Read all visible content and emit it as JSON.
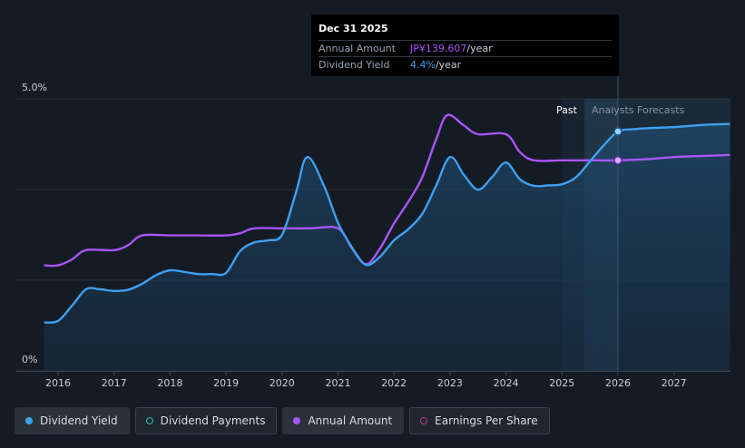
{
  "tooltip": {
    "date": "Dec 31 2025",
    "rows": [
      {
        "label": "Annual Amount",
        "value": "JP¥139.607",
        "unit": "/year"
      },
      {
        "label": "Dividend Yield",
        "value": "4.4%",
        "unit": "/year"
      }
    ]
  },
  "legend": [
    {
      "label": "Dividend Yield",
      "color": "#3ea0f0",
      "style": "filled"
    },
    {
      "label": "Dividend Payments",
      "color": "#2ec4b6",
      "style": "outline"
    },
    {
      "label": "Annual Amount",
      "color": "#a855f7",
      "style": "filled"
    },
    {
      "label": "Earnings Per Share",
      "color": "#c0357a",
      "style": "outline"
    }
  ],
  "chart_data": {
    "type": "line",
    "y_ticks": [
      "5.0%",
      "0%"
    ],
    "ylim": [
      0,
      5.0
    ],
    "xlim": [
      2015.7,
      2028.0
    ],
    "x_tick_labels": [
      "2016",
      "2017",
      "2018",
      "2019",
      "2020",
      "2021",
      "2022",
      "2023",
      "2024",
      "2025",
      "2026",
      "2027"
    ],
    "region_labels": {
      "past": "Past",
      "forecast": "Analysts Forecasts"
    },
    "forecast_start": 2025.4,
    "highlight_x": 2026.0,
    "series": [
      {
        "name": "Dividend Yield",
        "unit": "%",
        "color": "#3ea0f0",
        "points": [
          [
            2015.75,
            0.89
          ],
          [
            2016.0,
            0.92
          ],
          [
            2016.25,
            1.2
          ],
          [
            2016.5,
            1.5
          ],
          [
            2016.75,
            1.5
          ],
          [
            2017.0,
            1.47
          ],
          [
            2017.25,
            1.49
          ],
          [
            2017.5,
            1.6
          ],
          [
            2017.75,
            1.76
          ],
          [
            2018.0,
            1.85
          ],
          [
            2018.25,
            1.82
          ],
          [
            2018.5,
            1.78
          ],
          [
            2018.75,
            1.78
          ],
          [
            2019.0,
            1.8
          ],
          [
            2019.25,
            2.2
          ],
          [
            2019.5,
            2.36
          ],
          [
            2019.75,
            2.4
          ],
          [
            2020.0,
            2.5
          ],
          [
            2020.25,
            3.28
          ],
          [
            2020.45,
            3.93
          ],
          [
            2020.75,
            3.4
          ],
          [
            2021.0,
            2.72
          ],
          [
            2021.25,
            2.27
          ],
          [
            2021.5,
            1.95
          ],
          [
            2021.75,
            2.1
          ],
          [
            2022.0,
            2.4
          ],
          [
            2022.25,
            2.6
          ],
          [
            2022.5,
            2.88
          ],
          [
            2022.75,
            3.4
          ],
          [
            2023.0,
            3.93
          ],
          [
            2023.25,
            3.6
          ],
          [
            2023.5,
            3.33
          ],
          [
            2023.75,
            3.56
          ],
          [
            2024.0,
            3.83
          ],
          [
            2024.25,
            3.52
          ],
          [
            2024.5,
            3.4
          ],
          [
            2024.75,
            3.41
          ],
          [
            2025.0,
            3.43
          ],
          [
            2025.25,
            3.56
          ],
          [
            2025.5,
            3.85
          ],
          [
            2025.75,
            4.15
          ],
          [
            2026.0,
            4.4
          ],
          [
            2026.25,
            4.44
          ],
          [
            2026.5,
            4.46
          ],
          [
            2027.0,
            4.48
          ],
          [
            2027.5,
            4.52
          ],
          [
            2028.0,
            4.54
          ]
        ]
      },
      {
        "name": "Annual Amount",
        "color": "#a855f7",
        "points": [
          [
            2015.75,
            1.94
          ],
          [
            2016.0,
            1.94
          ],
          [
            2016.25,
            2.05
          ],
          [
            2016.5,
            2.22
          ],
          [
            2017.0,
            2.22
          ],
          [
            2017.25,
            2.31
          ],
          [
            2017.5,
            2.49
          ],
          [
            2018.0,
            2.49
          ],
          [
            2018.5,
            2.49
          ],
          [
            2019.0,
            2.49
          ],
          [
            2019.25,
            2.53
          ],
          [
            2019.5,
            2.62
          ],
          [
            2020.0,
            2.62
          ],
          [
            2020.5,
            2.62
          ],
          [
            2021.0,
            2.62
          ],
          [
            2021.25,
            2.25
          ],
          [
            2021.5,
            1.96
          ],
          [
            2021.75,
            2.25
          ],
          [
            2022.0,
            2.71
          ],
          [
            2022.25,
            3.1
          ],
          [
            2022.5,
            3.55
          ],
          [
            2022.75,
            4.25
          ],
          [
            2022.95,
            4.7
          ],
          [
            2023.25,
            4.51
          ],
          [
            2023.5,
            4.35
          ],
          [
            2024.0,
            4.35
          ],
          [
            2024.25,
            4.02
          ],
          [
            2024.5,
            3.87
          ],
          [
            2025.0,
            3.87
          ],
          [
            2025.5,
            3.87
          ],
          [
            2026.0,
            3.87
          ],
          [
            2026.5,
            3.89
          ],
          [
            2027.0,
            3.93
          ],
          [
            2027.5,
            3.95
          ],
          [
            2028.0,
            3.97
          ]
        ]
      }
    ]
  }
}
